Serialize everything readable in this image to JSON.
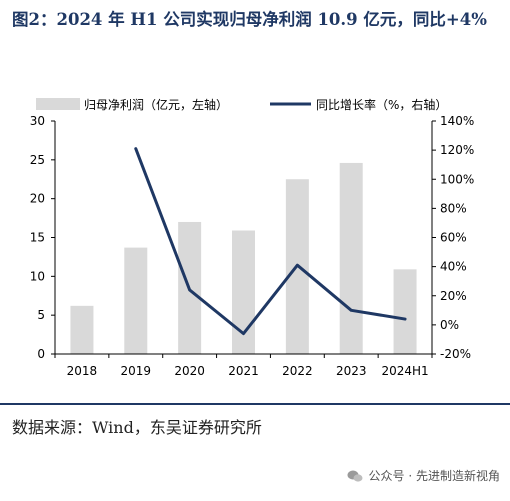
{
  "title": "图2：2024 年 H1 公司实现归母净利润 10.9 亿元，同比+4%",
  "source": "数据来源：Wind，东吴证券研究所",
  "watermark": "公众号 · 先进制造新视角",
  "colors": {
    "bar": "#d9d9d9",
    "line": "#1f3864",
    "title": "#1f3864"
  },
  "chart_data": {
    "type": "bar",
    "categories": [
      "2018",
      "2019",
      "2020",
      "2021",
      "2022",
      "2023",
      "2024H1"
    ],
    "series": [
      {
        "name": "归母净利润（亿元，左轴）",
        "type": "bar",
        "axis": "left",
        "values": [
          6.2,
          13.7,
          17.0,
          15.9,
          22.5,
          24.6,
          10.9
        ]
      },
      {
        "name": "同比增长率（%，右轴）",
        "type": "line",
        "axis": "right",
        "values": [
          null,
          121,
          24,
          -6,
          41,
          10,
          4
        ]
      }
    ],
    "ylim_left": [
      0,
      30
    ],
    "yticks_left": [
      "0",
      "5",
      "10",
      "15",
      "20",
      "25",
      "30"
    ],
    "ylim_right": [
      -20,
      140
    ],
    "yticks_right": [
      "-20%",
      "0%",
      "20%",
      "40%",
      "60%",
      "80%",
      "100%",
      "120%",
      "140%"
    ],
    "legend_position": "top",
    "grid": false
  }
}
